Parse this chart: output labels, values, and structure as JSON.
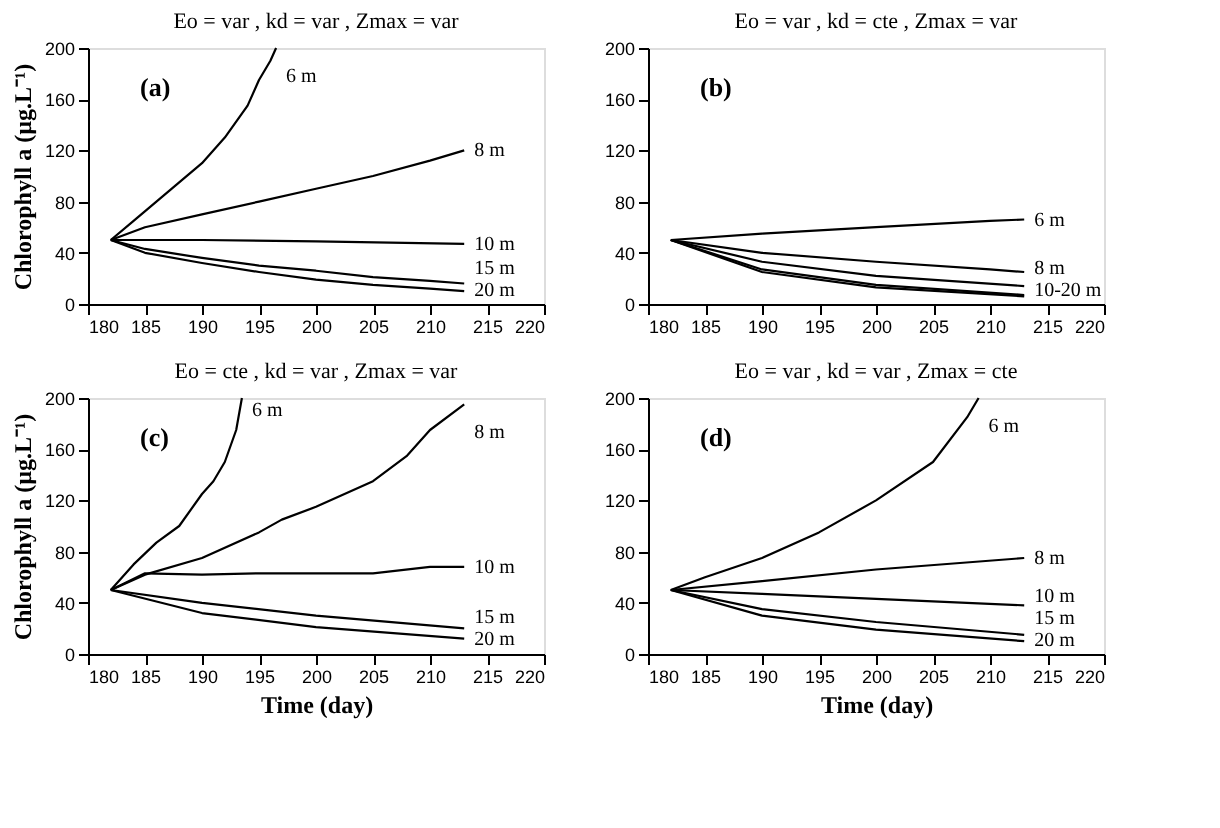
{
  "chart_data": [
    {
      "type": "line",
      "title": "Eo = var ,  kd = var ,  Zmax = var",
      "ylabel": "Chlorophyll a  (µg.L⁻¹)",
      "xlim": [
        180,
        220
      ],
      "xticks": [
        180,
        185,
        190,
        195,
        200,
        205,
        210,
        215,
        220
      ],
      "ylim": [
        0,
        200
      ],
      "yticks": [
        0,
        40,
        80,
        120,
        160,
        200
      ],
      "marker": "none",
      "line_style": "solid",
      "annotations": [
        "(a)"
      ],
      "series": [
        {
          "name": "6 m",
          "color": "#000000",
          "x": [
            182,
            184,
            186,
            188,
            190,
            192,
            194,
            195,
            196,
            196.5
          ],
          "values": [
            50,
            65,
            80,
            95,
            110,
            130,
            155,
            175,
            190,
            200
          ]
        },
        {
          "name": "8 m",
          "color": "#000000",
          "x": [
            182,
            185,
            190,
            195,
            200,
            205,
            210,
            213
          ],
          "values": [
            50,
            60,
            70,
            80,
            90,
            100,
            112,
            120
          ]
        },
        {
          "name": "10 m",
          "color": "#000000",
          "x": [
            182,
            190,
            200,
            213
          ],
          "values": [
            50,
            50,
            49,
            47
          ]
        },
        {
          "name": "15 m",
          "color": "#000000",
          "x": [
            182,
            185,
            190,
            195,
            200,
            205,
            210,
            213
          ],
          "values": [
            50,
            43,
            36,
            30,
            26,
            21,
            18,
            16
          ]
        },
        {
          "name": "20 m",
          "color": "#000000",
          "x": [
            182,
            185,
            190,
            195,
            200,
            205,
            210,
            213
          ],
          "values": [
            50,
            40,
            32,
            25,
            19,
            15,
            12,
            10
          ]
        }
      ]
    },
    {
      "type": "line",
      "title": "Eo = var ,  kd = cte ,  Zmax = var",
      "xlim": [
        180,
        220
      ],
      "xticks": [
        180,
        185,
        190,
        195,
        200,
        205,
        210,
        215,
        220
      ],
      "ylim": [
        0,
        200
      ],
      "yticks": [
        0,
        40,
        80,
        120,
        160,
        200
      ],
      "marker": "none",
      "line_style": "solid",
      "annotations": [
        "(b)"
      ],
      "series": [
        {
          "name": "6 m",
          "color": "#000000",
          "x": [
            182,
            190,
            200,
            210,
            213
          ],
          "values": [
            50,
            55,
            60,
            65,
            66
          ]
        },
        {
          "name": "8 m",
          "color": "#000000",
          "x": [
            182,
            190,
            200,
            210,
            213
          ],
          "values": [
            50,
            40,
            33,
            27,
            25
          ]
        },
        {
          "color": "#000000",
          "x": [
            182,
            190,
            200,
            213
          ],
          "values": [
            50,
            33,
            22,
            14
          ]
        },
        {
          "name": "10-20 m",
          "color": "#000000",
          "x": [
            182,
            190,
            200,
            213
          ],
          "values": [
            50,
            27,
            15,
            7
          ]
        },
        {
          "color": "#000000",
          "x": [
            182,
            190,
            200,
            213
          ],
          "values": [
            50,
            25,
            13,
            6
          ]
        }
      ]
    },
    {
      "type": "line",
      "title": "Eo = cte ,  kd = var ,  Zmax = var",
      "xlabel": "Time (day)",
      "ylabel": "Chlorophyll a  (µg.L⁻¹)",
      "xlim": [
        180,
        220
      ],
      "xticks": [
        180,
        185,
        190,
        195,
        200,
        205,
        210,
        215,
        220
      ],
      "ylim": [
        0,
        200
      ],
      "yticks": [
        0,
        40,
        80,
        120,
        160,
        200
      ],
      "marker": "none",
      "line_style": "solid",
      "annotations": [
        "(c)"
      ],
      "series": [
        {
          "name": "6 m",
          "color": "#000000",
          "x": [
            182,
            184,
            186,
            188,
            190,
            191,
            192,
            193,
            193.5
          ],
          "values": [
            50,
            70,
            87,
            100,
            125,
            135,
            150,
            175,
            200
          ]
        },
        {
          "name": "8 m",
          "color": "#000000",
          "x": [
            182,
            185,
            190,
            195,
            197,
            200,
            205,
            208,
            210,
            213
          ],
          "values": [
            50,
            62,
            75,
            95,
            105,
            115,
            135,
            155,
            175,
            195
          ]
        },
        {
          "name": "10 m",
          "color": "#000000",
          "x": [
            182,
            185,
            190,
            195,
            200,
            205,
            210,
            213
          ],
          "values": [
            50,
            63,
            62,
            63,
            63,
            63,
            68,
            68
          ]
        },
        {
          "name": "15 m",
          "color": "#000000",
          "x": [
            182,
            190,
            200,
            213
          ],
          "values": [
            50,
            40,
            30,
            20
          ]
        },
        {
          "name": "20 m",
          "color": "#000000",
          "x": [
            182,
            190,
            200,
            213
          ],
          "values": [
            50,
            32,
            21,
            12
          ]
        }
      ]
    },
    {
      "type": "line",
      "title": "Eo = var ,  kd = var ,  Zmax = cte",
      "xlabel": "Time (day)",
      "xlim": [
        180,
        220
      ],
      "xticks": [
        180,
        185,
        190,
        195,
        200,
        205,
        210,
        215,
        220
      ],
      "ylim": [
        0,
        200
      ],
      "yticks": [
        0,
        40,
        80,
        120,
        160,
        200
      ],
      "marker": "none",
      "line_style": "solid",
      "annotations": [
        "(d)"
      ],
      "series": [
        {
          "name": "6 m",
          "color": "#000000",
          "x": [
            182,
            185,
            190,
            195,
            200,
            205,
            208,
            209
          ],
          "values": [
            50,
            60,
            75,
            95,
            120,
            150,
            185,
            200
          ]
        },
        {
          "name": "8 m",
          "color": "#000000",
          "x": [
            182,
            190,
            200,
            213
          ],
          "values": [
            50,
            57,
            66,
            75
          ]
        },
        {
          "name": "10 m",
          "color": "#000000",
          "x": [
            182,
            190,
            200,
            213
          ],
          "values": [
            50,
            47,
            43,
            38
          ]
        },
        {
          "name": "15 m",
          "color": "#000000",
          "x": [
            182,
            190,
            200,
            213
          ],
          "values": [
            50,
            35,
            25,
            15
          ]
        },
        {
          "name": "20 m",
          "color": "#000000",
          "x": [
            182,
            190,
            200,
            213
          ],
          "values": [
            50,
            30,
            19,
            10
          ]
        }
      ]
    }
  ]
}
